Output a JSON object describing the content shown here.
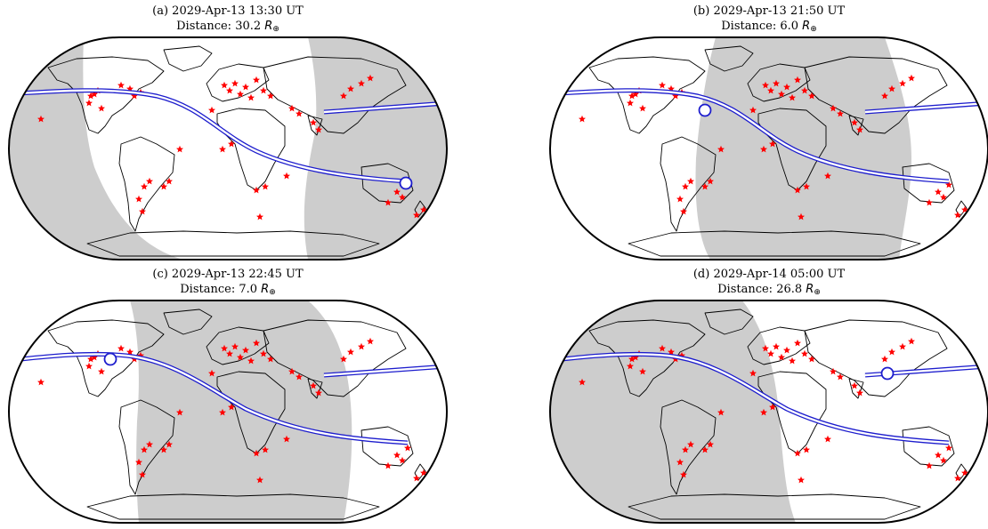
{
  "panels": [
    {
      "label": "(a) 2029-Apr-13 13:30 UT",
      "distance_prefix": "Distance: 30.2",
      "distance_symbol": "R",
      "distance_subscript": "⊕",
      "observer": "left",
      "pass": "east"
    },
    {
      "label": "(b) 2029-Apr-13 21:50 UT",
      "distance_prefix": "Distance: 6.0",
      "distance_symbol": "R",
      "distance_subscript": "⊕",
      "observer": "east",
      "pass": "east"
    },
    {
      "label": "(c) 2029-Apr-13 22:45 UT",
      "distance_prefix": "Distance: 7.0",
      "distance_symbol": "R",
      "distance_subscript": "⊕",
      "observer": "middle",
      "pass": "us"
    },
    {
      "label": "(d) 2029-Apr-14 05:00 UT",
      "distance_prefix": "Distance: 26.8",
      "distance_symbol": "R",
      "distance_subscript": "⊕",
      "observer": "west",
      "pass": "asia"
    }
  ],
  "colors": {
    "night": "#cdcdcd",
    "track": "#1c1ccd",
    "star": "#ff0000",
    "coast": "#000000"
  }
}
